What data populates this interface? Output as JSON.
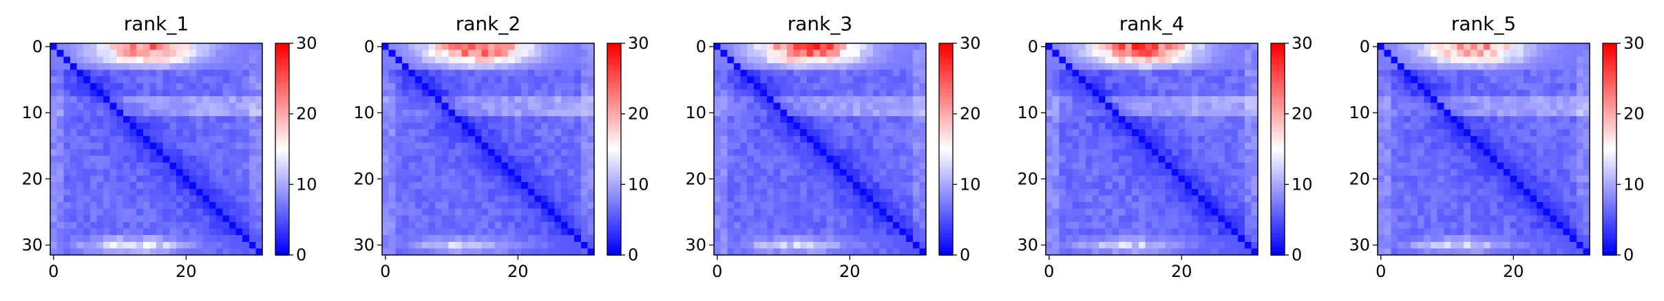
{
  "chart_data": [
    {
      "type": "heatmap",
      "title": "rank_1",
      "grid_size": 32,
      "xlim": [
        0,
        31
      ],
      "ylim": [
        31,
        0
      ],
      "xticks": [
        0,
        20
      ],
      "yticks": [
        0,
        10,
        20,
        30
      ],
      "color_range": [
        0,
        30
      ],
      "colorbar_ticks": [
        0,
        10,
        20,
        30
      ],
      "colormap": [
        "#0000ff",
        "#ffffff",
        "#ff0000"
      ],
      "top_band_peak": 23,
      "bottom_band_peak": 14,
      "grid": false
    },
    {
      "type": "heatmap",
      "title": "rank_2",
      "grid_size": 32,
      "xlim": [
        0,
        31
      ],
      "ylim": [
        31,
        0
      ],
      "xticks": [
        0,
        20
      ],
      "yticks": [
        0,
        10,
        20,
        30
      ],
      "color_range": [
        0,
        30
      ],
      "colorbar_ticks": [
        0,
        10,
        20,
        30
      ],
      "colormap": [
        "#0000ff",
        "#ffffff",
        "#ff0000"
      ],
      "top_band_peak": 25,
      "bottom_band_peak": 12,
      "grid": false
    },
    {
      "type": "heatmap",
      "title": "rank_3",
      "grid_size": 32,
      "xlim": [
        0,
        31
      ],
      "ylim": [
        31,
        0
      ],
      "xticks": [
        0,
        20
      ],
      "yticks": [
        0,
        10,
        20,
        30
      ],
      "color_range": [
        0,
        30
      ],
      "colorbar_ticks": [
        0,
        10,
        20,
        30
      ],
      "colormap": [
        "#0000ff",
        "#ffffff",
        "#ff0000"
      ],
      "top_band_peak": 26,
      "bottom_band_peak": 12,
      "grid": false
    },
    {
      "type": "heatmap",
      "title": "rank_4",
      "grid_size": 32,
      "xlim": [
        0,
        31
      ],
      "ylim": [
        31,
        0
      ],
      "xticks": [
        0,
        20
      ],
      "yticks": [
        0,
        10,
        20,
        30
      ],
      "color_range": [
        0,
        30
      ],
      "colorbar_ticks": [
        0,
        10,
        20,
        30
      ],
      "colormap": [
        "#0000ff",
        "#ffffff",
        "#ff0000"
      ],
      "top_band_peak": 26,
      "bottom_band_peak": 12,
      "grid": false
    },
    {
      "type": "heatmap",
      "title": "rank_5",
      "grid_size": 32,
      "xlim": [
        0,
        31
      ],
      "ylim": [
        31,
        0
      ],
      "xticks": [
        0,
        20
      ],
      "yticks": [
        0,
        10,
        20,
        30
      ],
      "color_range": [
        0,
        30
      ],
      "colorbar_ticks": [
        0,
        10,
        20,
        30
      ],
      "colormap": [
        "#0000ff",
        "#ffffff",
        "#ff0000"
      ],
      "top_band_peak": 22,
      "bottom_band_peak": 12,
      "grid": false
    }
  ]
}
